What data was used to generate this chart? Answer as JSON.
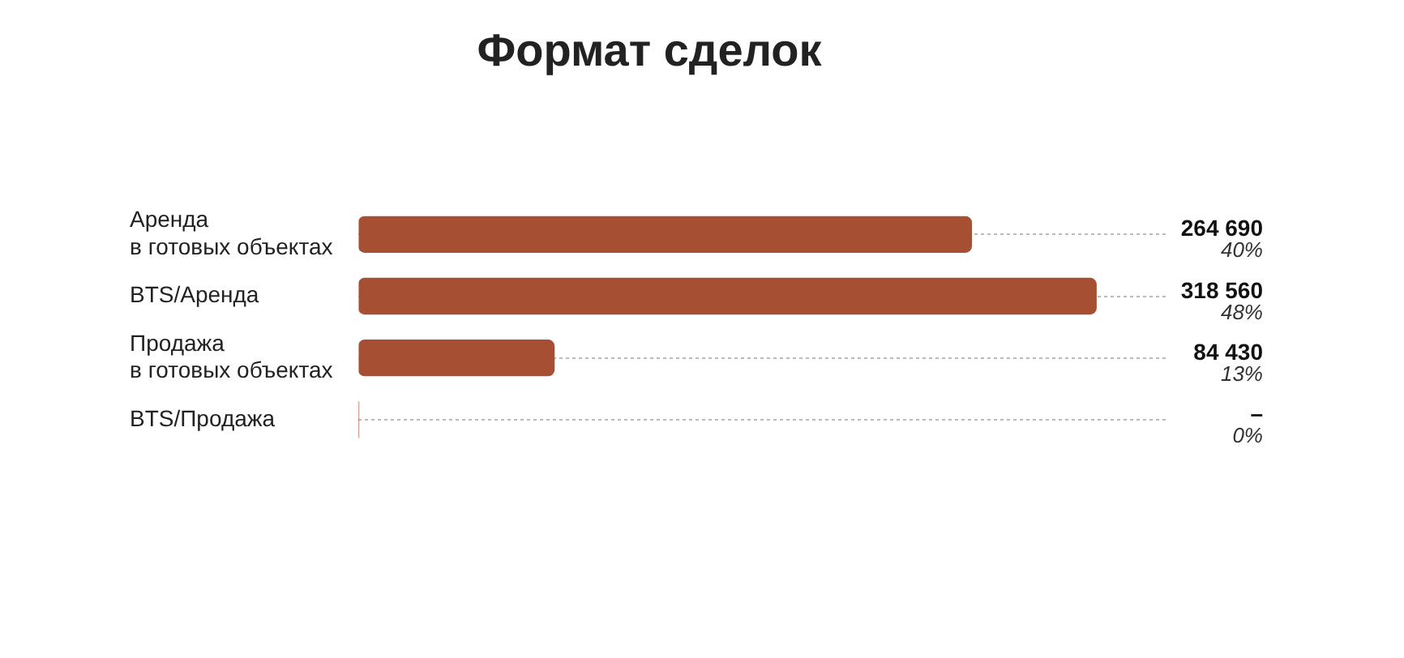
{
  "chart_data": {
    "type": "bar",
    "orientation": "horizontal",
    "title": "Формат сделок",
    "categories": [
      "Аренда в готовых объектах",
      "BTS/Аренда",
      "Продажа в готовых объектах",
      "BTS/Продажа"
    ],
    "values": [
      264690,
      318560,
      84430,
      0
    ],
    "color": "#a64f33",
    "value_labels": [
      "264 690",
      "318 560",
      "84 430",
      "–"
    ],
    "annotations": [
      "40%",
      "48%",
      "13%",
      "0%"
    ],
    "grid": "y",
    "legend": false
  }
}
